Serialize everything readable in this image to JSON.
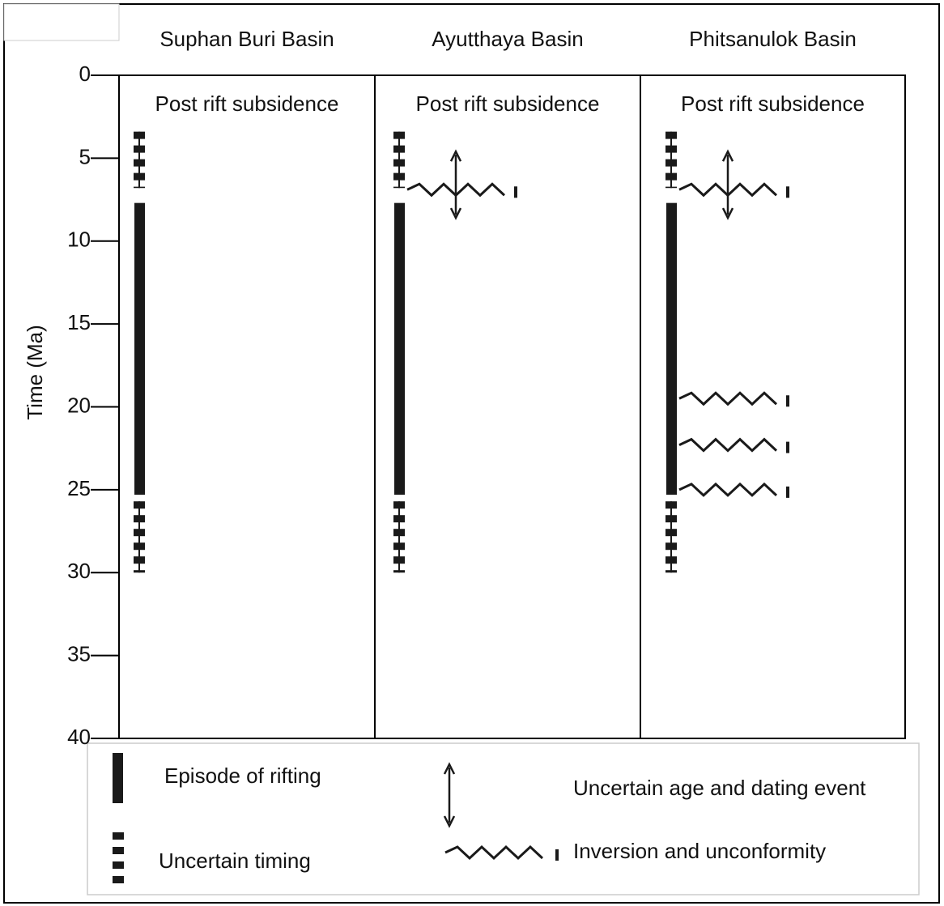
{
  "chart_data": {
    "type": "timeline",
    "y_label": "Time (Ma)",
    "ylim": [
      0,
      40
    ],
    "yticks": [
      0,
      5,
      10,
      15,
      20,
      25,
      30,
      35,
      40
    ],
    "color": "#1a1a1a",
    "panels": [
      {
        "title": "Suphan Buri Basin",
        "phase_label": "Post rift subsidence",
        "rifting": [
          7.7,
          25.3
        ],
        "uncertain": [
          [
            3.4,
            6.8
          ],
          [
            25.7,
            30
          ]
        ],
        "unconformities": [],
        "uncertain_age": []
      },
      {
        "title": "Ayutthaya Basin",
        "phase_label": "Post rift subsidence",
        "rifting": [
          7.7,
          25.3
        ],
        "uncertain": [
          [
            3.4,
            6.8
          ],
          [
            25.7,
            30
          ]
        ],
        "unconformities": [
          6.9
        ],
        "uncertain_age": [
          [
            4.6,
            8.6
          ]
        ]
      },
      {
        "title": "Phitsanulok Basin",
        "phase_label": "Post rift subsidence",
        "rifting": [
          7.7,
          25.3
        ],
        "uncertain": [
          [
            3.4,
            6.8
          ],
          [
            25.7,
            30
          ]
        ],
        "unconformities": [
          6.9,
          19.5,
          22.3,
          25
        ],
        "uncertain_age": [
          [
            4.6,
            8.6
          ]
        ]
      }
    ],
    "legend": {
      "rifting": "Episode of rifting",
      "uncertain": "Uncertain timing",
      "uncertain_age": "Uncertain age and dating event",
      "unconformity": "Inversion and unconformity"
    }
  }
}
